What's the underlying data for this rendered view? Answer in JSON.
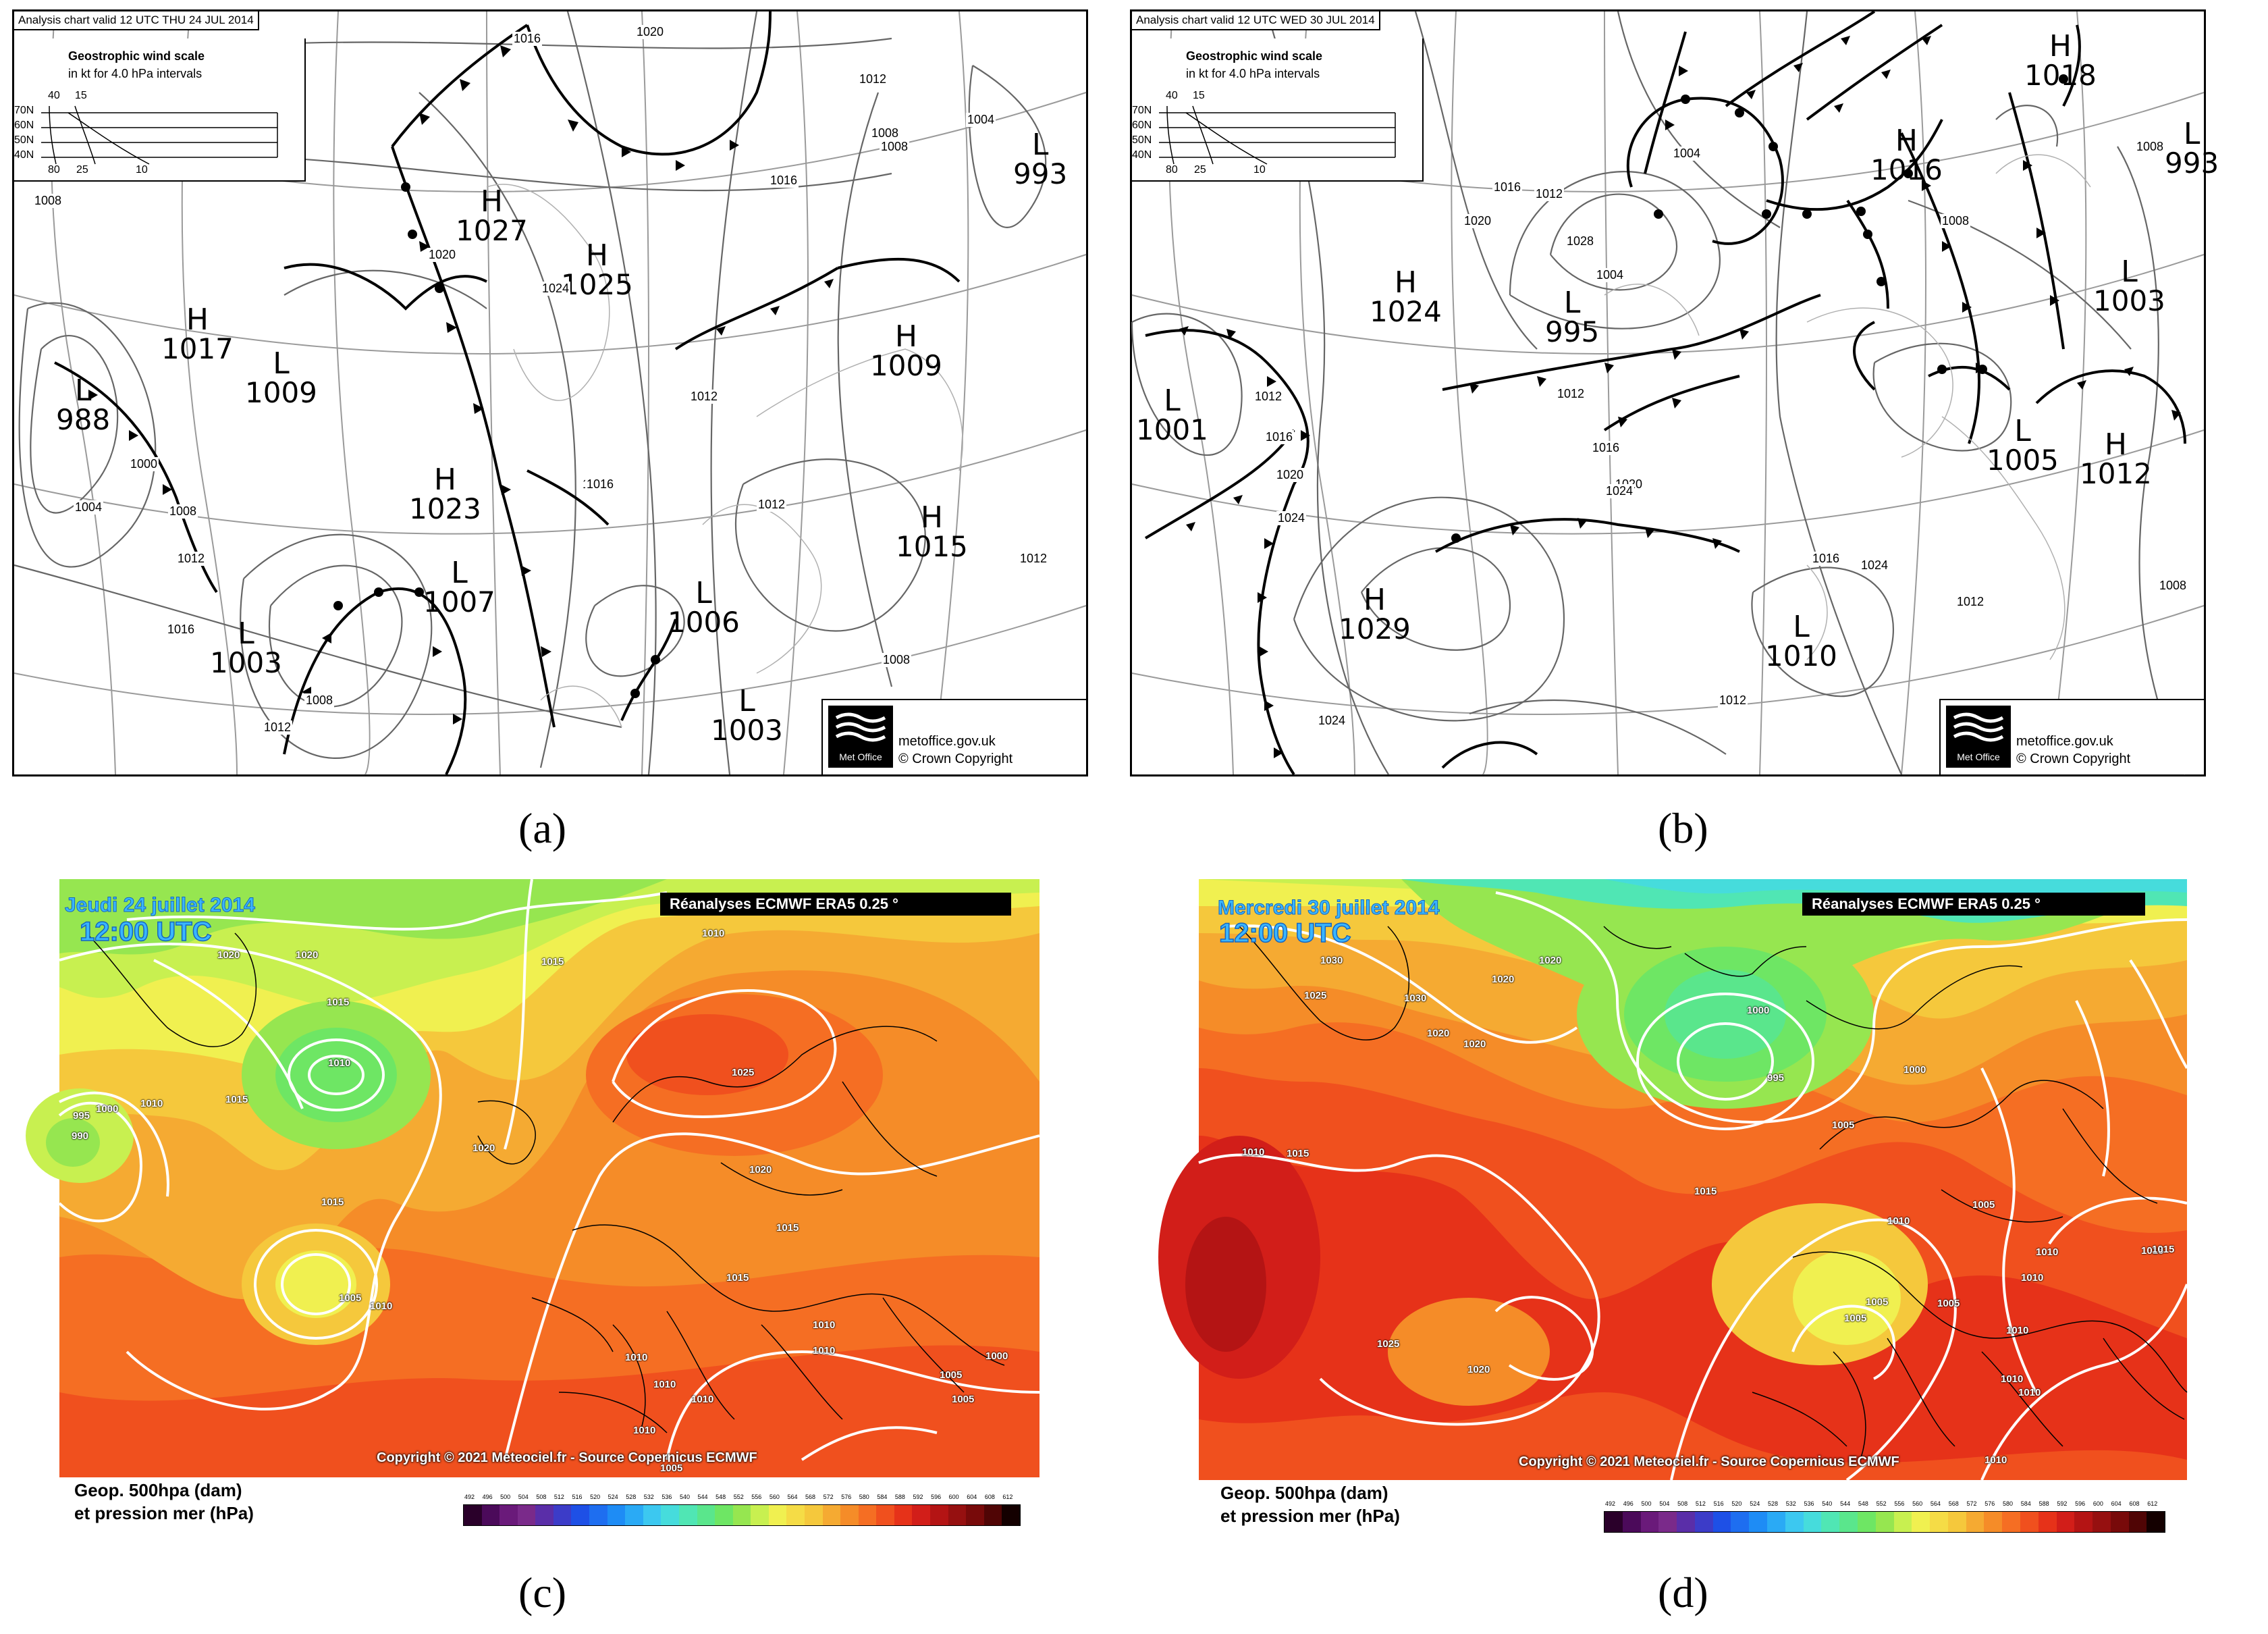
{
  "panels": {
    "a": {
      "header": "Analysis chart valid 12 UTC THU 24  JUL 2014",
      "scale_title": "Geostrophic wind scale",
      "scale_sub": "in kt for 4.0 hPa intervals",
      "scale_top": [
        "40",
        "15"
      ],
      "scale_bottom": [
        "80",
        "25",
        "10"
      ],
      "scale_lats": [
        "70N",
        "60N",
        "50N",
        "40N"
      ],
      "centres": [
        {
          "type": "L",
          "value": "988"
        },
        {
          "type": "H",
          "value": "1017"
        },
        {
          "type": "L",
          "value": "1009"
        },
        {
          "type": "H",
          "value": "1027"
        },
        {
          "type": "H",
          "value": "1025"
        },
        {
          "type": "H",
          "value": "1023"
        },
        {
          "type": "L",
          "value": "1007"
        },
        {
          "type": "L",
          "value": "1003"
        },
        {
          "type": "L",
          "value": "1006"
        },
        {
          "type": "L",
          "value": "1003"
        },
        {
          "type": "H",
          "value": "1009"
        },
        {
          "type": "H",
          "value": "1015"
        },
        {
          "type": "L",
          "value": "993"
        }
      ],
      "isobar_labels": [
        "1020",
        "1016",
        "1012",
        "1008",
        "1004",
        "1020",
        "1024",
        "1012",
        "1016",
        "1016",
        "1012",
        "1008",
        "1012",
        "1016",
        "1008",
        "1012",
        "1008",
        "1008",
        "1012",
        "1008",
        "1004",
        "1000",
        "1016",
        "1016"
      ],
      "brand": [
        "metoffice.gov.uk",
        "© Crown Copyright"
      ],
      "logo_text": "Met Office"
    },
    "b": {
      "header": "Analysis chart valid 12 UTC WED 30  JUL 2014",
      "scale_title": "Geostrophic wind scale",
      "scale_sub": "in kt for 4.0 hPa intervals",
      "scale_top": [
        "40",
        "15"
      ],
      "scale_bottom": [
        "80",
        "25",
        "10"
      ],
      "scale_lats": [
        "70N",
        "60N",
        "50N",
        "40N"
      ],
      "centres": [
        {
          "type": "L",
          "value": "1001"
        },
        {
          "type": "H",
          "value": "1024"
        },
        {
          "type": "L",
          "value": "995"
        },
        {
          "type": "H",
          "value": "1029"
        },
        {
          "type": "H",
          "value": "1018"
        },
        {
          "type": "H",
          "value": "1016"
        },
        {
          "type": "L",
          "value": "993"
        },
        {
          "type": "L",
          "value": "1003"
        },
        {
          "type": "L",
          "value": "1005"
        },
        {
          "type": "H",
          "value": "1012"
        },
        {
          "type": "L",
          "value": "1010"
        }
      ],
      "isobar_labels": [
        "1012",
        "1016",
        "1020",
        "1024",
        "1028",
        "1004",
        "1012",
        "1016",
        "1020",
        "1024",
        "1016",
        "1020",
        "1024",
        "1012",
        "1008",
        "1012",
        "1016",
        "1008",
        "1008",
        "1012",
        "1004",
        "1008",
        "1024"
      ],
      "brand": [
        "metoffice.gov.uk",
        "© Crown Copyright"
      ],
      "logo_text": "Met Office"
    },
    "c": {
      "date": "Jeudi 24 juillet 2014",
      "time": "12:00 UTC",
      "title": "Réanalyses ECMWF ERA5 0.25 °",
      "copyright": "Copyright © 2021 Meteociel.fr - Source Copernicus ECMWF",
      "pressure_labels": [
        "1020",
        "1020",
        "1010",
        "1015",
        "1010",
        "1015",
        "995",
        "1000",
        "990",
        "1010",
        "1015",
        "1020",
        "1015",
        "1025",
        "1020",
        "1015",
        "1015",
        "1005",
        "1010",
        "1010",
        "1010",
        "1010",
        "1010",
        "1000",
        "1005",
        "1005",
        "1010",
        "1010",
        "1005"
      ],
      "legend_line1": "Geop. 500hpa (dam)",
      "legend_line2": "et pression mer (hPa)"
    },
    "d": {
      "date": "Mercredi 30 juillet 2014",
      "time": "12:00 UTC",
      "title": "Réanalyses ECMWF ERA5 0.25 °",
      "copyright": "Copyright © 2021 Meteociel.fr - Source Copernicus ECMWF",
      "pressure_labels": [
        "1030",
        "1025",
        "1030",
        "1020",
        "1020",
        "1020",
        "1020",
        "1000",
        "995",
        "1000",
        "1005",
        "1010",
        "1015",
        "1015",
        "1010",
        "1005",
        "1010",
        "1015",
        "1010",
        "1005",
        "1005",
        "1005",
        "1010",
        "1010",
        "1010",
        "1025",
        "1020",
        "1010",
        "1015"
      ],
      "legend_line1": "Geop. 500hpa (dam)",
      "legend_line2": "et pression mer (hPa)"
    }
  },
  "colorbar": {
    "ticks": [
      "492",
      "496",
      "500",
      "504",
      "508",
      "512",
      "516",
      "520",
      "524",
      "528",
      "532",
      "536",
      "540",
      "544",
      "548",
      "552",
      "556",
      "560",
      "564",
      "568",
      "572",
      "576",
      "580",
      "584",
      "588",
      "592",
      "596",
      "600",
      "604",
      "608",
      "612"
    ],
    "colors": [
      "#2a002a",
      "#4b0a5a",
      "#6a1a7a",
      "#7a2a8a",
      "#5a2ea8",
      "#3c3cc8",
      "#1e50e6",
      "#1e6ef0",
      "#1e8cf5",
      "#2aaaf5",
      "#3cc8f0",
      "#46dcdc",
      "#50e6b4",
      "#5ae68c",
      "#6ee664",
      "#96e650",
      "#c8f050",
      "#f0f050",
      "#f5dc46",
      "#f5c83c",
      "#f5aa32",
      "#f58c28",
      "#f56e23",
      "#f0501e",
      "#e63219",
      "#d21e19",
      "#b41414",
      "#961010",
      "#780a0a",
      "#500505",
      "#140000"
    ]
  },
  "sublabels": [
    "(a)",
    "(b)",
    "(c)",
    "(d)"
  ]
}
